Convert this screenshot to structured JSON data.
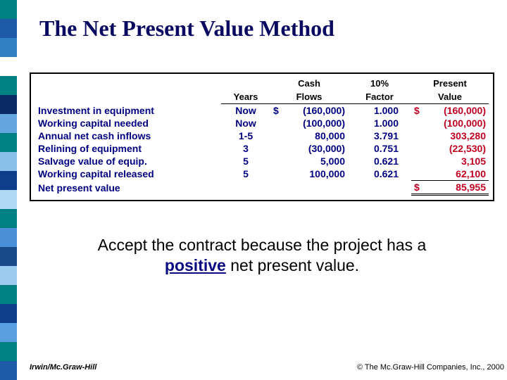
{
  "title": "The Net Present Value Method",
  "stripe_colors": [
    "#008080",
    "#1e5aa8",
    "#2f80c4",
    "#ffffff",
    "#008080",
    "#0a2a66",
    "#66a6e0",
    "#008080",
    "#88c0ea",
    "#0f3d8a",
    "#b0d8f4",
    "#008080",
    "#4a90d8",
    "#1a4a8a",
    "#9ccbf0",
    "#008080",
    "#0f3d8a",
    "#5aa0e0",
    "#008080",
    "#1e5aa8"
  ],
  "table": {
    "headers": {
      "label": "",
      "years": "Years",
      "cash_l1": "Cash",
      "cash_l2": "Flows",
      "factor_l1": "10%",
      "factor_l2": "Factor",
      "pv_l1": "Present",
      "pv_l2": "Value"
    },
    "rows": [
      {
        "label": "Investment in equipment",
        "years": "Now",
        "cash": "(160,000)",
        "cash_dollar": true,
        "factor": "1.000",
        "pv": "(160,000)",
        "pv_dollar": true
      },
      {
        "label": "Working capital needed",
        "years": "Now",
        "cash": "(100,000)",
        "cash_dollar": false,
        "factor": "1.000",
        "pv": "(100,000)",
        "pv_dollar": false
      },
      {
        "label": "Annual net cash inflows",
        "years": "1-5",
        "cash": "80,000",
        "cash_dollar": false,
        "factor": "3.791",
        "pv": "303,280",
        "pv_dollar": false
      },
      {
        "label": "Relining of equipment",
        "years": "3",
        "cash": "(30,000)",
        "cash_dollar": false,
        "factor": "0.751",
        "pv": "(22,530)",
        "pv_dollar": false
      },
      {
        "label": "Salvage value of equip.",
        "years": "5",
        "cash": "5,000",
        "cash_dollar": false,
        "factor": "0.621",
        "pv": "3,105",
        "pv_dollar": false
      },
      {
        "label": "Working capital released",
        "years": "5",
        "cash": "100,000",
        "cash_dollar": false,
        "factor": "0.621",
        "pv": "62,100",
        "pv_dollar": false
      }
    ],
    "total": {
      "label": "Net present value",
      "pv": "85,955",
      "pv_dollar": true
    }
  },
  "body_text": {
    "line1a": "Accept the contract because the project has a",
    "positive": "positive",
    "line2b": " net present value."
  },
  "footer": {
    "left": "Irwin/Mc.Graw-Hill",
    "right": "© The Mc.Graw-Hill Companies, Inc., 2000"
  },
  "colors": {
    "title": "#0a0a60",
    "table_text": "#000080",
    "pv_text": "#c00020",
    "positive_text": "#0a0a80"
  }
}
